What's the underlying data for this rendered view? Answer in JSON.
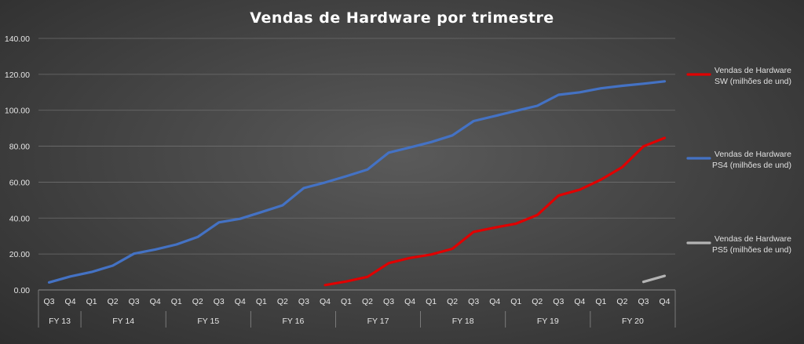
{
  "chart_data": {
    "type": "line",
    "title": "Vendas  de  Hardware  por  trimestre",
    "ylim": [
      0,
      140
    ],
    "yticks": [
      "0.00",
      "20.00",
      "40.00",
      "60.00",
      "80.00",
      "100.00",
      "120.00",
      "140.00"
    ],
    "grid": true,
    "legend": "right",
    "categories": [
      "Q3",
      "Q4",
      "Q1",
      "Q2",
      "Q3",
      "Q4",
      "Q1",
      "Q2",
      "Q3",
      "Q4",
      "Q1",
      "Q2",
      "Q3",
      "Q4",
      "Q1",
      "Q2",
      "Q3",
      "Q4",
      "Q1",
      "Q2",
      "Q3",
      "Q4",
      "Q1",
      "Q2",
      "Q3",
      "Q4",
      "Q1",
      "Q2",
      "Q3",
      "Q4"
    ],
    "fiscal_years": [
      {
        "label": "FY  13",
        "count": 2
      },
      {
        "label": "FY 14",
        "count": 4
      },
      {
        "label": "FY 15",
        "count": 4
      },
      {
        "label": "FY 16",
        "count": 4
      },
      {
        "label": "FY 17",
        "count": 4
      },
      {
        "label": "FY 18",
        "count": 4
      },
      {
        "label": "FY 19",
        "count": 4
      },
      {
        "label": "FY 20",
        "count": 4
      }
    ],
    "series": [
      {
        "name": "Vendas de Hardware SW (milhões de und)",
        "legend_lines": [
          "Vendas de Hardware",
          "SW (milhões de und)"
        ],
        "color": "#e00000",
        "values": [
          null,
          null,
          null,
          null,
          null,
          null,
          null,
          null,
          null,
          null,
          null,
          null,
          null,
          2.7,
          4.7,
          7.3,
          14.9,
          17.8,
          19.7,
          22.9,
          32.3,
          34.7,
          36.9,
          41.7,
          52.5,
          55.8,
          61.4,
          68.3,
          79.9,
          84.6
        ]
      },
      {
        "name": "Vendas de Hardware PS4 (milhões de und)",
        "legend_lines": [
          "Vendas de Hardware",
          "PS4 (milhões de und)"
        ],
        "color": "#4472c4",
        "values": [
          4.2,
          7.5,
          10.0,
          13.5,
          20.2,
          22.5,
          25.3,
          29.5,
          37.6,
          39.6,
          43.3,
          47.1,
          56.7,
          59.8,
          63.3,
          67.0,
          76.4,
          79.3,
          82.3,
          86.0,
          94.0,
          96.8,
          99.7,
          102.5,
          108.6,
          110.0,
          112.2,
          113.6,
          114.8,
          116.1
        ]
      },
      {
        "name": "Vendas de Hardware PS5 (milhões de und)",
        "legend_lines": [
          "Vendas de Hardware",
          "PS5 (milhões de und)"
        ],
        "color": "#b4b4b4",
        "values": [
          null,
          null,
          null,
          null,
          null,
          null,
          null,
          null,
          null,
          null,
          null,
          null,
          null,
          null,
          null,
          null,
          null,
          null,
          null,
          null,
          null,
          null,
          null,
          null,
          null,
          null,
          null,
          null,
          4.5,
          7.8
        ]
      }
    ]
  }
}
